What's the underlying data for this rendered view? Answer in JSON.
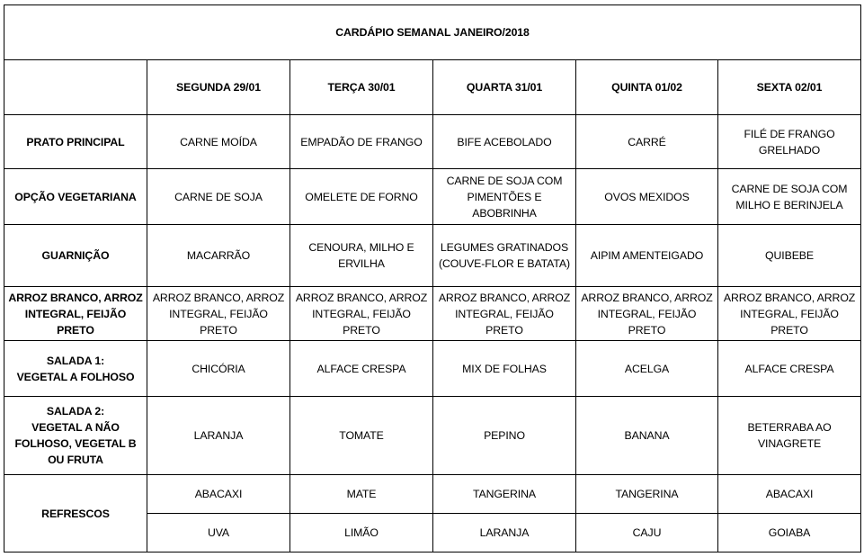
{
  "title": "CARDÁPIO SEMANAL JANEIRO/2018",
  "days": [
    "SEGUNDA 29/01",
    "TERÇA 30/01",
    "QUARTA 31/01",
    "QUINTA 01/02",
    "SEXTA 02/01"
  ],
  "rows": [
    {
      "label": "PRATO PRINCIPAL",
      "cells": [
        "CARNE MOÍDA",
        "EMPADÃO DE FRANGO",
        "BIFE ACEBOLADO",
        "CARRÉ",
        "FILÉ DE FRANGO\nGRELHADO"
      ]
    },
    {
      "label": "OPÇÃO VEGETARIANA",
      "cells": [
        "CARNE DE SOJA",
        "OMELETE DE FORNO",
        "CARNE DE SOJA COM\nPIMENTÕES E\nABOBRINHA",
        "OVOS MEXIDOS",
        "CARNE DE SOJA COM\nMILHO E BERINJELA"
      ]
    },
    {
      "label": "GUARNIÇÃO",
      "cells": [
        "MACARRÃO",
        "CENOURA, MILHO E\nERVILHA",
        "LEGUMES GRATINADOS\n(COUVE-FLOR E BATATA)",
        "AIPIM AMENTEIGADO",
        "QUIBEBE"
      ]
    },
    {
      "label": "ARROZ BRANCO, ARROZ\nINTEGRAL, FEIJÃO\nPRETO",
      "cells": [
        "ARROZ BRANCO, ARROZ\nINTEGRAL, FEIJÃO\nPRETO",
        "ARROZ BRANCO, ARROZ\nINTEGRAL, FEIJÃO\nPRETO",
        "ARROZ BRANCO, ARROZ\nINTEGRAL, FEIJÃO\nPRETO",
        "ARROZ BRANCO, ARROZ\nINTEGRAL, FEIJÃO\nPRETO",
        "ARROZ BRANCO, ARROZ\nINTEGRAL, FEIJÃO\nPRETO"
      ]
    },
    {
      "label": "SALADA 1:\nVEGETAL A FOLHOSO",
      "cells": [
        "CHICÓRIA",
        "ALFACE CRESPA",
        "MIX DE FOLHAS",
        "ACELGA",
        "ALFACE CRESPA"
      ]
    },
    {
      "label": "SALADA 2:\nVEGETAL A NÃO\nFOLHOSO, VEGETAL B\nOU FRUTA",
      "cells": [
        "LARANJA",
        "TOMATE",
        "PEPINO",
        "BANANA",
        "BETERRABA AO\nVINAGRETE"
      ]
    }
  ],
  "refrescos": {
    "label": "REFRESCOS",
    "row1": [
      "ABACAXI",
      "MATE",
      "TANGERINA",
      "TANGERINA",
      "ABACAXI"
    ],
    "row2": [
      "UVA",
      "LIMÃO",
      "LARANJA",
      "CAJU",
      "GOIABA"
    ]
  }
}
